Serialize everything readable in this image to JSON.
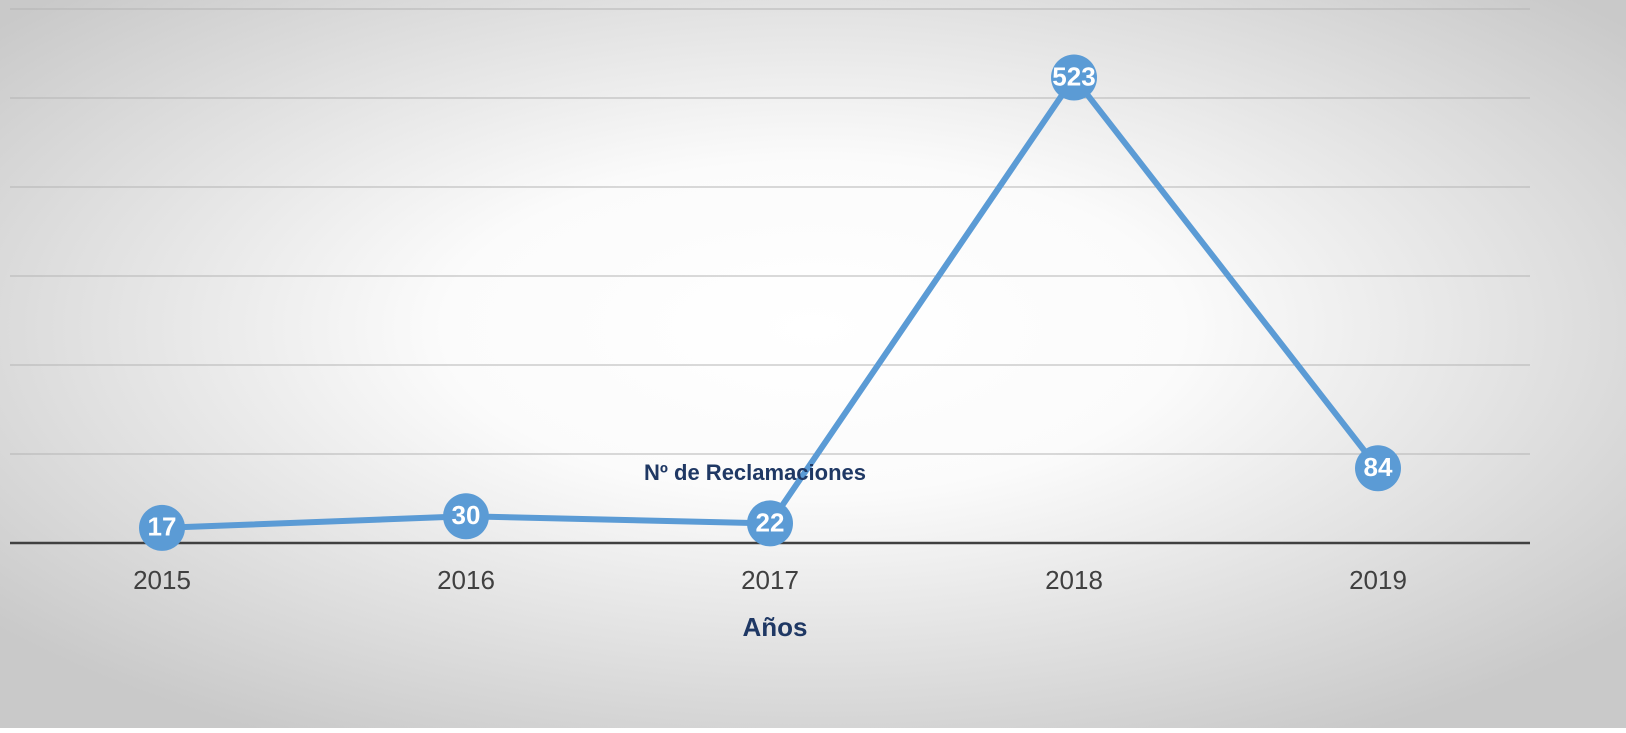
{
  "chart_data": {
    "type": "line",
    "x_label": "Años",
    "categories": [
      "2015",
      "2016",
      "2017",
      "2018",
      "2019"
    ],
    "series": [
      {
        "name": "Nº de Reclamaciones",
        "color": "#5b9bd5",
        "values": [
          17,
          30,
          22,
          523,
          84
        ]
      }
    ],
    "ylim": [
      0,
      600
    ],
    "yticks": [
      0,
      100,
      200,
      300,
      400,
      500,
      600
    ],
    "grid": true
  }
}
